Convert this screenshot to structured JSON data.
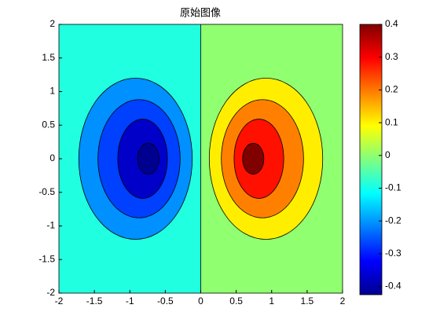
{
  "chart_data": {
    "type": "contour",
    "title": "原始图像",
    "xlim": [
      -2,
      2
    ],
    "xticks": [
      -2,
      -1.5,
      -1,
      -0.5,
      0,
      0.5,
      1,
      1.5,
      2
    ],
    "ylim": [
      -2,
      2
    ],
    "yticks": [
      -2,
      -1.5,
      -1,
      -0.5,
      0,
      0.5,
      1,
      1.5,
      2
    ],
    "background": [
      {
        "level": -0.05,
        "color": "#20ffe0",
        "xrange": [
          -2,
          0
        ]
      },
      {
        "level": 0.05,
        "color": "#90ff70",
        "xrange": [
          0,
          2
        ]
      }
    ],
    "contours": [
      {
        "level": -0.15,
        "color": "#0090ff",
        "cx": -0.92,
        "cy": 0,
        "rx": 0.8,
        "ry": 1.2
      },
      {
        "level": -0.25,
        "color": "#0040ff",
        "cx": -0.87,
        "cy": 0,
        "rx": 0.58,
        "ry": 0.88
      },
      {
        "level": -0.35,
        "color": "#0000c8",
        "cx": -0.82,
        "cy": 0,
        "rx": 0.35,
        "ry": 0.59
      },
      {
        "level": -0.4,
        "color": "#000090",
        "cx": -0.74,
        "cy": 0,
        "rx": 0.15,
        "ry": 0.23
      },
      {
        "level": 0.15,
        "color": "#ffee00",
        "cx": 0.92,
        "cy": 0,
        "rx": 0.8,
        "ry": 1.2
      },
      {
        "level": 0.25,
        "color": "#ff8000",
        "cx": 0.87,
        "cy": 0,
        "rx": 0.58,
        "ry": 0.88
      },
      {
        "level": 0.35,
        "color": "#ff1000",
        "cx": 0.82,
        "cy": 0,
        "rx": 0.35,
        "ry": 0.59
      },
      {
        "level": 0.4,
        "color": "#800000",
        "cx": 0.74,
        "cy": 0,
        "rx": 0.15,
        "ry": 0.23
      }
    ],
    "clim": [
      -0.425,
      0.4
    ],
    "colorbar_ticks": [
      -0.4,
      -0.3,
      -0.2,
      -0.1,
      0,
      0.1,
      0.2,
      0.3,
      0.4
    ],
    "colormap": [
      "#00008f",
      "#0000ff",
      "#0080ff",
      "#00ffff",
      "#80ff80",
      "#ffff00",
      "#ff8000",
      "#ff0000",
      "#800000"
    ]
  }
}
